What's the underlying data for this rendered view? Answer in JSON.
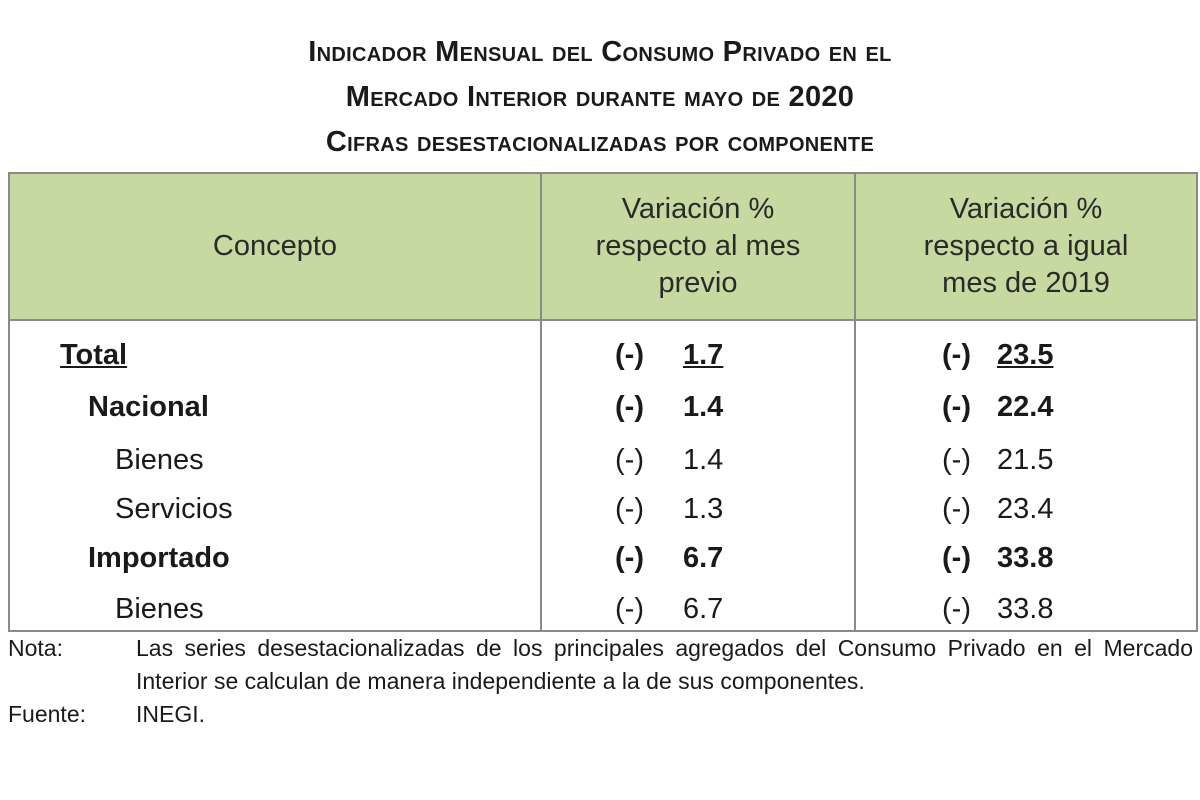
{
  "title": {
    "line1": "Indicador Mensual del Consumo Privado en el",
    "line2": "Mercado Interior durante mayo de 2020",
    "line3": "Cifras desestacionalizadas por componente"
  },
  "table": {
    "header_bg": "#c5d9a0",
    "headers": {
      "concepto": "Concepto",
      "var_mes_previo": "Variación %\nrespecto al mes\nprevio",
      "var_anual": "Variación %\nrespecto a igual\nmes de 2019"
    },
    "rows": [
      {
        "concepto": "Total",
        "s1": "(-)",
        "v1": "1.7",
        "s2": "(-)",
        "v2": "23.5"
      },
      {
        "concepto": "Nacional",
        "s1": "(-)",
        "v1": "1.4",
        "s2": "(-)",
        "v2": "22.4"
      },
      {
        "concepto": "Bienes",
        "s1": "(-)",
        "v1": "1.4",
        "s2": "(-)",
        "v2": "21.5"
      },
      {
        "concepto": "Servicios",
        "s1": "(-)",
        "v1": "1.3",
        "s2": "(-)",
        "v2": "23.4"
      },
      {
        "concepto": "Importado",
        "s1": "(-)",
        "v1": "6.7",
        "s2": "(-)",
        "v2": "33.8"
      },
      {
        "concepto": "Bienes",
        "s1": "(-)",
        "v1": "6.7",
        "s2": "(-)",
        "v2": "33.8"
      }
    ]
  },
  "notes": {
    "nota_label": "Nota:",
    "nota_text": "Las series desestacionalizadas de los principales agregados del Consumo Privado en el Mercado Interior se calculan de manera independiente a la de sus componentes.",
    "fuente_label": "Fuente:",
    "fuente_text": "INEGI."
  }
}
